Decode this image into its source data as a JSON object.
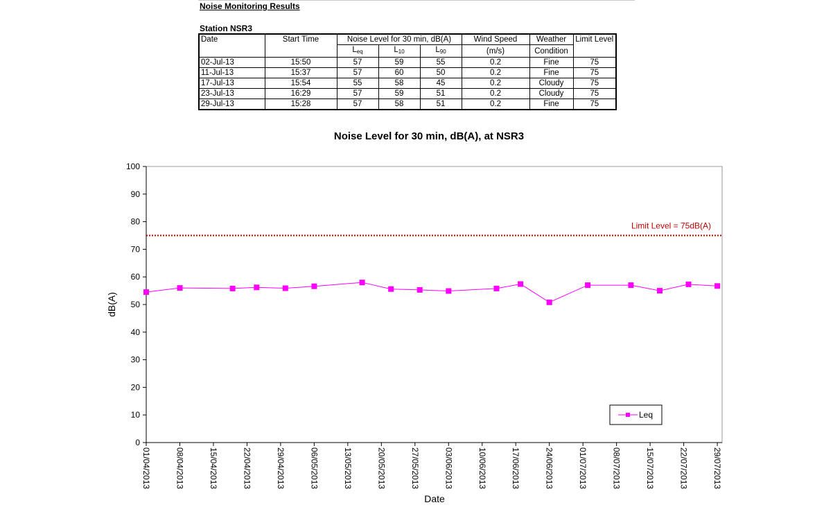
{
  "report": {
    "heading": "Noise Monitoring Results",
    "station": "Station NSR3",
    "columns": {
      "date": "Date",
      "start_time": "Start Time",
      "noise_level": "Noise Level for 30 min, dB(A)",
      "leq_main": "L",
      "leq_sub": "eq",
      "l10_main": "L",
      "l10_sub": "10",
      "l90_main": "L",
      "l90_sub": "90",
      "wind_speed": "Wind Speed",
      "wind_unit": "(m/s)",
      "weather_1": "Weather",
      "weather_2": "Condition",
      "limit_level": "Limit Level"
    },
    "rows": [
      {
        "date": "02-Jul-13",
        "time": "15:50",
        "leq": "57",
        "l10": "59",
        "l90": "55",
        "wind": "0.2",
        "weather": "Fine",
        "limit": "75"
      },
      {
        "date": "11-Jul-13",
        "time": "15:37",
        "leq": "57",
        "l10": "60",
        "l90": "50",
        "wind": "0.2",
        "weather": "Fine",
        "limit": "75"
      },
      {
        "date": "17-Jul-13",
        "time": "15:54",
        "leq": "55",
        "l10": "58",
        "l90": "45",
        "wind": "0.2",
        "weather": "Cloudy",
        "limit": "75"
      },
      {
        "date": "23-Jul-13",
        "time": "16:29",
        "leq": "57",
        "l10": "59",
        "l90": "51",
        "wind": "0.2",
        "weather": "Cloudy",
        "limit": "75"
      },
      {
        "date": "29-Jul-13",
        "time": "15:28",
        "leq": "57",
        "l10": "58",
        "l90": "51",
        "wind": "0.2",
        "weather": "Fine",
        "limit": "75"
      }
    ]
  },
  "chart_data": {
    "type": "line",
    "title": "Noise Level for 30 min, dB(A), at NSR3",
    "xlabel": "Date",
    "ylabel": "dB(A)",
    "ylim": [
      0,
      100
    ],
    "yticks": [
      0,
      10,
      20,
      30,
      40,
      50,
      60,
      70,
      80,
      90,
      100
    ],
    "xlim": [
      "2013-04-01",
      "2013-07-30"
    ],
    "xtick_labels": [
      "01/04/2013",
      "08/04/2013",
      "15/04/2013",
      "22/04/2013",
      "29/04/2013",
      "06/05/2013",
      "13/05/2013",
      "20/05/2013",
      "27/05/2013",
      "03/06/2013",
      "10/06/2013",
      "17/06/2013",
      "24/06/2013",
      "01/07/2013",
      "08/07/2013",
      "15/07/2013",
      "22/07/2013",
      "29/07/2013"
    ],
    "grid": false,
    "legend_position": "bottom-right",
    "colors": {
      "series": "#ff00ff",
      "limit": "#c00000"
    },
    "series": [
      {
        "name": "Leq",
        "x": [
          "2013-04-01",
          "2013-04-08",
          "2013-04-19",
          "2013-04-24",
          "2013-04-30",
          "2013-05-06",
          "2013-05-16",
          "2013-05-22",
          "2013-05-28",
          "2013-06-03",
          "2013-06-13",
          "2013-06-18",
          "2013-06-24",
          "2013-07-02",
          "2013-07-11",
          "2013-07-17",
          "2013-07-23",
          "2013-07-29"
        ],
        "y": [
          54.5,
          56,
          55.8,
          56.2,
          55.9,
          56.6,
          58,
          55.6,
          55.3,
          54.9,
          55.8,
          57.4,
          50.8,
          57,
          57,
          55,
          57.3,
          56.7
        ]
      }
    ],
    "limit_line": {
      "value": 75,
      "label": "Limit Level  = 75dB(A)"
    }
  }
}
